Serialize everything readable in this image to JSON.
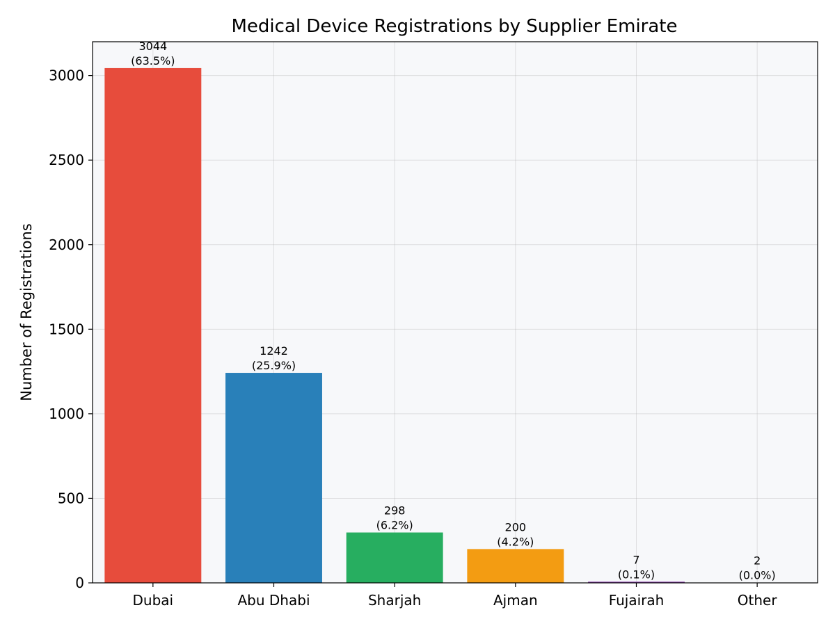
{
  "chart_data": {
    "type": "bar",
    "title": "Medical Device Registrations by Supplier Emirate",
    "xlabel": "",
    "ylabel": "Number of Registrations",
    "categories": [
      "Dubai",
      "Abu Dhabi",
      "Sharjah",
      "Ajman",
      "Fujairah",
      "Other"
    ],
    "values": [
      3044,
      1242,
      298,
      200,
      7,
      2
    ],
    "percent_labels": [
      "(63.5%)",
      "(25.9%)",
      "(6.2%)",
      "(4.2%)",
      "(0.1%)",
      "(0.0%)"
    ],
    "colors": [
      "#e74c3c",
      "#2980b9",
      "#27ae60",
      "#f39c12",
      "#8e44ad",
      "#7f8c8d"
    ],
    "ylim": [
      0,
      3200
    ],
    "yticks": [
      0,
      500,
      1000,
      1500,
      2000,
      2500,
      3000
    ],
    "grid": true,
    "plot_background": "#f7f8fa"
  }
}
